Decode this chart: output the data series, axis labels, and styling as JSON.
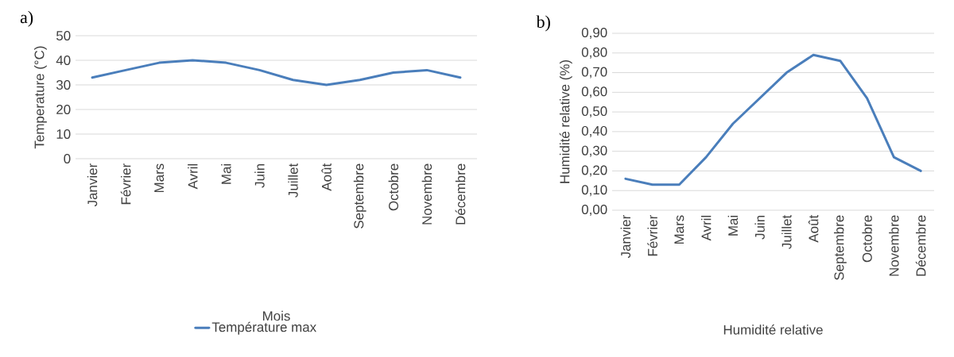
{
  "chart_data": [
    {
      "type": "line",
      "title": "a)",
      "xlabel": "Mois",
      "ylabel": "Temperature (°C)",
      "categories": [
        "Janvier",
        "Février",
        "Mars",
        "Avril",
        "Mai",
        "Juin",
        "Juillet",
        "Août",
        "Septembre",
        "Octobre",
        "Novembre",
        "Décembre"
      ],
      "series": [
        {
          "name": "Température max",
          "color": "#4a7ebb",
          "values": [
            33,
            36,
            39,
            40,
            39,
            36,
            32,
            30,
            32,
            35,
            36,
            33
          ]
        }
      ],
      "ylim": [
        0,
        50
      ],
      "yticks": [
        0,
        10,
        20,
        30,
        40,
        50
      ],
      "grid": "y",
      "legend": "bottom"
    },
    {
      "type": "line",
      "title": "b)",
      "xlabel": "Humidité relative",
      "ylabel": "Humidité relative (%)",
      "categories": [
        "Janvier",
        "Février",
        "Mars",
        "Avril",
        "Mai",
        "Juin",
        "Juillet",
        "Août",
        "Septembre",
        "Octobre",
        "Novembre",
        "Décembre"
      ],
      "series": [
        {
          "color": "#4a7ebb",
          "values": [
            0.16,
            0.13,
            0.13,
            0.27,
            0.44,
            0.57,
            0.7,
            0.79,
            0.76,
            0.57,
            0.27,
            0.2
          ]
        }
      ],
      "ylim": [
        0,
        0.9
      ],
      "yticks": [
        {
          "value": 0,
          "label": "0,00"
        },
        {
          "value": 0.1,
          "label": "0,10"
        },
        {
          "value": 0.2,
          "label": "0,20"
        },
        {
          "value": 0.3,
          "label": "0,30"
        },
        {
          "value": 0.4,
          "label": "0,40"
        },
        {
          "value": 0.5,
          "label": "0,50"
        },
        {
          "value": 0.6,
          "label": "0,60"
        },
        {
          "value": 0.7,
          "label": "0,70"
        },
        {
          "value": 0.8,
          "label": "0,80"
        },
        {
          "value": 0.9,
          "label": "0,90"
        }
      ],
      "grid": "y"
    }
  ]
}
